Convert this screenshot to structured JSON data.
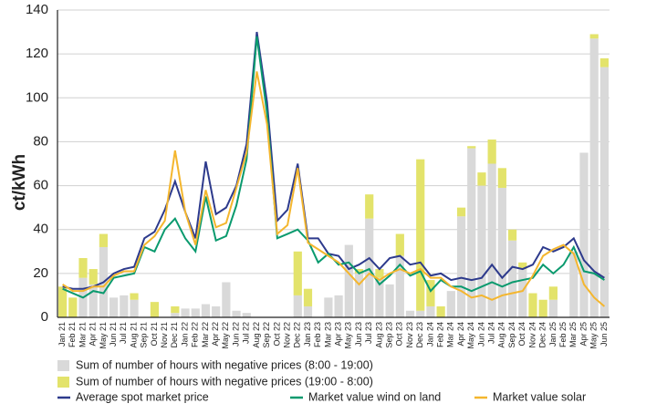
{
  "chart_data": {
    "type": "bar-line",
    "y_label": "ct/kWh",
    "categories": [
      "Jan 21",
      "Feb 21",
      "Mar 21",
      "Apr 21",
      "May 21",
      "Jun 21",
      "Jul 21",
      "Aug 21",
      "Sep 21",
      "Oct 21",
      "Nov 21",
      "Dec 21",
      "Jan 22",
      "Feb 22",
      "Mar 22",
      "Apr 22",
      "May 22",
      "Jun 22",
      "Jul 22",
      "Aug 22",
      "Sep 22",
      "Oct 22",
      "Nov 22",
      "Dec 22",
      "Jan 23",
      "Feb 23",
      "Mar 23",
      "Apr 23",
      "May 23",
      "Jun 23",
      "Jul 23",
      "Aug 23",
      "Sep 23",
      "Oct 23",
      "Nov 23",
      "Dec 23",
      "Jan 24",
      "Feb 24",
      "Mar 24",
      "Apr 24",
      "May 24",
      "Jun 24",
      "Jul 24",
      "Aug 24",
      "Sep 24",
      "Oct 24",
      "Nov 24",
      "Dec 24",
      "Jan 25",
      "Feb 25",
      "Mar 25",
      "Apr 25",
      "May 25",
      "Jun 25"
    ],
    "series": [
      {
        "name": "Sum of number of hours with negative prices (8:00 - 19:00)",
        "type": "bar",
        "color": "#d9d9d9",
        "values": [
          0,
          0,
          18,
          15,
          32,
          9,
          10,
          8,
          0,
          0,
          0,
          2,
          4,
          4,
          6,
          5,
          16,
          3,
          2,
          0,
          0,
          0,
          0,
          10,
          5,
          0,
          9,
          10,
          33,
          20,
          45,
          18,
          15,
          28,
          3,
          3,
          5,
          0,
          12,
          46,
          77,
          60,
          70,
          59,
          35,
          22,
          0,
          0,
          8,
          0,
          30,
          75,
          127,
          114
        ]
      },
      {
        "name": "Sum of number of hours with negative prices (19:00 - 8:00)",
        "type": "bar",
        "color": "#e3e36b",
        "values": [
          14,
          9,
          9,
          7,
          6,
          0,
          0,
          3,
          0,
          7,
          0,
          3,
          0,
          0,
          0,
          0,
          0,
          0,
          0,
          0,
          0,
          0,
          0,
          20,
          8,
          0,
          0,
          0,
          0,
          2,
          11,
          4,
          0,
          10,
          0,
          69,
          12,
          5,
          0,
          4,
          1,
          6,
          11,
          9,
          5,
          3,
          11,
          8,
          6,
          0,
          0,
          0,
          2,
          4
        ]
      },
      {
        "name": "Average spot market price",
        "type": "line",
        "color": "#2d3a8c",
        "values": [
          14,
          13,
          13,
          14,
          16,
          20,
          22,
          23,
          36,
          39,
          49,
          62,
          48,
          36,
          71,
          47,
          50,
          60,
          79,
          130,
          98,
          44,
          49,
          70,
          36,
          36,
          29,
          28,
          22,
          24,
          27,
          22,
          27,
          28,
          24,
          25,
          19,
          20,
          17,
          18,
          17,
          18,
          24,
          18,
          23,
          22,
          24,
          32,
          30,
          32,
          36,
          26,
          21,
          18
        ]
      },
      {
        "name": "Market value wind on land",
        "type": "line",
        "color": "#0a9a6e",
        "values": [
          13,
          11,
          9,
          12,
          11,
          18,
          19,
          20,
          32,
          30,
          40,
          45,
          36,
          30,
          55,
          35,
          37,
          51,
          72,
          128,
          93,
          36,
          38,
          40,
          35,
          25,
          29,
          24,
          25,
          20,
          22,
          15,
          19,
          24,
          19,
          21,
          12,
          17,
          14,
          14,
          12,
          14,
          16,
          14,
          16,
          17,
          18,
          24,
          20,
          24,
          32,
          21,
          20,
          17
        ]
      },
      {
        "name": "Market value solar",
        "type": "line",
        "color": "#f4b62e",
        "values": [
          15,
          12,
          12,
          14,
          14,
          19,
          21,
          21,
          33,
          37,
          44,
          76,
          48,
          33,
          58,
          41,
          43,
          59,
          75,
          112,
          88,
          38,
          42,
          68,
          34,
          31,
          28,
          25,
          20,
          15,
          20,
          17,
          20,
          22,
          20,
          22,
          18,
          18,
          14,
          12,
          9,
          10,
          8,
          10,
          11,
          12,
          19,
          28,
          31,
          33,
          29,
          15,
          9,
          5
        ]
      }
    ],
    "ylim": [
      0,
      140
    ],
    "yticks": [
      0,
      20,
      40,
      60,
      80,
      100,
      120,
      140
    ],
    "grid": true
  }
}
